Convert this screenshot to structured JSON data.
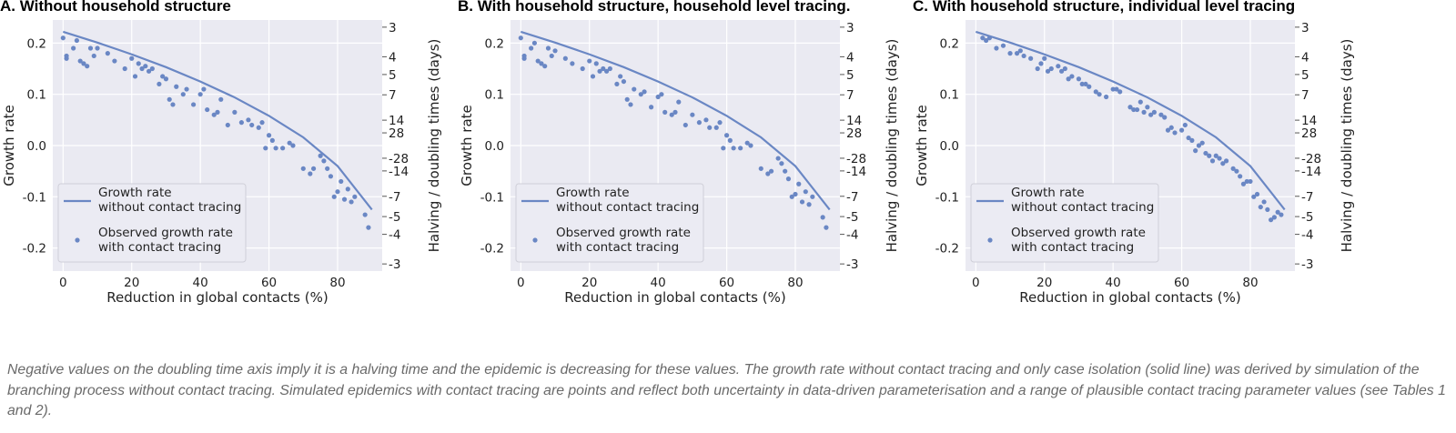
{
  "chart_data": [
    {
      "type": "scatter",
      "title": "A. Without household structure",
      "xlabel": "Reduction in global contacts (%)",
      "ylabel": "Growth rate",
      "y2label": "Halving / doubling times (days)",
      "xlim": [
        -3,
        93
      ],
      "ylim": [
        -0.245,
        0.245
      ],
      "xticks": [
        "0",
        "20",
        "40",
        "60",
        "80"
      ],
      "yticks": [
        "0.2",
        "0.1",
        "0.0",
        "-0.1",
        "-0.2"
      ],
      "y2ticks": [
        "-3",
        "-4",
        "-5",
        "-7",
        "-14",
        "-28",
        "28",
        "14",
        "7",
        "5",
        "4",
        "3"
      ],
      "grid": true,
      "legend": {
        "placement": "lower-left",
        "entries": [
          "Growth rate\nwithout contact tracing",
          "Observed growth rate\nwith contact tracing"
        ]
      },
      "series": [
        {
          "name": "Growth rate\nwithout contact tracing",
          "type": "line",
          "x": [
            0,
            10,
            20,
            30,
            40,
            50,
            60,
            70,
            80,
            90
          ],
          "y": [
            0.222,
            0.201,
            0.178,
            0.153,
            0.125,
            0.094,
            0.058,
            0.016,
            -0.04,
            -0.125
          ]
        },
        {
          "name": "Observed growth rate\nwith contact tracing",
          "type": "scatter",
          "points": [
            [
              0,
              0.21
            ],
            [
              1,
              0.175
            ],
            [
              1,
              0.17
            ],
            [
              3,
              0.19
            ],
            [
              4,
              0.205
            ],
            [
              5,
              0.165
            ],
            [
              6,
              0.16
            ],
            [
              7,
              0.155
            ],
            [
              8,
              0.19
            ],
            [
              9,
              0.175
            ],
            [
              10,
              0.19
            ],
            [
              13,
              0.18
            ],
            [
              15,
              0.165
            ],
            [
              18,
              0.15
            ],
            [
              20,
              0.17
            ],
            [
              21,
              0.135
            ],
            [
              22,
              0.16
            ],
            [
              23,
              0.15
            ],
            [
              24,
              0.155
            ],
            [
              25,
              0.145
            ],
            [
              26,
              0.15
            ],
            [
              28,
              0.12
            ],
            [
              29,
              0.135
            ],
            [
              30,
              0.13
            ],
            [
              31,
              0.09
            ],
            [
              32,
              0.08
            ],
            [
              33,
              0.115
            ],
            [
              35,
              0.1
            ],
            [
              36,
              0.11
            ],
            [
              38,
              0.08
            ],
            [
              40,
              0.1
            ],
            [
              41,
              0.11
            ],
            [
              42,
              0.07
            ],
            [
              44,
              0.06
            ],
            [
              45,
              0.065
            ],
            [
              46,
              0.09
            ],
            [
              48,
              0.04
            ],
            [
              50,
              0.065
            ],
            [
              52,
              0.045
            ],
            [
              54,
              0.05
            ],
            [
              55,
              0.04
            ],
            [
              57,
              0.035
            ],
            [
              58,
              0.045
            ],
            [
              59,
              -0.005
            ],
            [
              60,
              0.02
            ],
            [
              61,
              0.01
            ],
            [
              62,
              -0.005
            ],
            [
              64,
              -0.005
            ],
            [
              66,
              0.005
            ],
            [
              67,
              0.0
            ],
            [
              70,
              -0.045
            ],
            [
              72,
              -0.055
            ],
            [
              73,
              -0.045
            ],
            [
              75,
              -0.02
            ],
            [
              76,
              -0.03
            ],
            [
              77,
              -0.045
            ],
            [
              78,
              -0.06
            ],
            [
              79,
              -0.1
            ],
            [
              80,
              -0.09
            ],
            [
              81,
              -0.07
            ],
            [
              82,
              -0.105
            ],
            [
              83,
              -0.085
            ],
            [
              84,
              -0.11
            ],
            [
              85,
              -0.1
            ],
            [
              88,
              -0.135
            ],
            [
              89,
              -0.16
            ]
          ]
        }
      ]
    },
    {
      "type": "scatter",
      "title": "B. With household structure, household level tracing.",
      "xlabel": "Reduction in global contacts (%)",
      "ylabel": "Growth rate",
      "y2label": "Halving / doubling times (days)",
      "xlim": [
        -3,
        93
      ],
      "ylim": [
        -0.245,
        0.245
      ],
      "xticks": [
        "0",
        "20",
        "40",
        "60",
        "80"
      ],
      "yticks": [
        "0.2",
        "0.1",
        "0.0",
        "-0.1",
        "-0.2"
      ],
      "y2ticks": [
        "-3",
        "-4",
        "-5",
        "-7",
        "-14",
        "-28",
        "28",
        "14",
        "7",
        "5",
        "4",
        "3"
      ],
      "grid": true,
      "legend": {
        "placement": "lower-left",
        "entries": [
          "Growth rate\nwithout contact tracing",
          "Observed growth rate\nwith contact tracing"
        ]
      },
      "series": [
        {
          "name": "Growth rate\nwithout contact tracing",
          "type": "line",
          "x": [
            0,
            10,
            20,
            30,
            40,
            50,
            60,
            70,
            80,
            90
          ],
          "y": [
            0.222,
            0.201,
            0.178,
            0.153,
            0.125,
            0.094,
            0.058,
            0.016,
            -0.04,
            -0.125
          ]
        },
        {
          "name": "Observed growth rate\nwith contact tracing",
          "type": "scatter",
          "points": [
            [
              0,
              0.21
            ],
            [
              1,
              0.175
            ],
            [
              1,
              0.17
            ],
            [
              3,
              0.19
            ],
            [
              4,
              0.2
            ],
            [
              5,
              0.165
            ],
            [
              6,
              0.16
            ],
            [
              7,
              0.155
            ],
            [
              8,
              0.19
            ],
            [
              9,
              0.175
            ],
            [
              10,
              0.185
            ],
            [
              13,
              0.17
            ],
            [
              15,
              0.16
            ],
            [
              18,
              0.15
            ],
            [
              20,
              0.165
            ],
            [
              21,
              0.135
            ],
            [
              22,
              0.16
            ],
            [
              23,
              0.145
            ],
            [
              24,
              0.15
            ],
            [
              25,
              0.145
            ],
            [
              26,
              0.15
            ],
            [
              28,
              0.12
            ],
            [
              29,
              0.135
            ],
            [
              30,
              0.125
            ],
            [
              31,
              0.09
            ],
            [
              32,
              0.08
            ],
            [
              33,
              0.11
            ],
            [
              35,
              0.1
            ],
            [
              36,
              0.105
            ],
            [
              38,
              0.075
            ],
            [
              40,
              0.095
            ],
            [
              41,
              0.1
            ],
            [
              42,
              0.065
            ],
            [
              44,
              0.06
            ],
            [
              45,
              0.065
            ],
            [
              46,
              0.085
            ],
            [
              48,
              0.04
            ],
            [
              50,
              0.06
            ],
            [
              52,
              0.045
            ],
            [
              54,
              0.05
            ],
            [
              55,
              0.035
            ],
            [
              57,
              0.035
            ],
            [
              58,
              0.045
            ],
            [
              59,
              -0.005
            ],
            [
              60,
              0.02
            ],
            [
              61,
              0.01
            ],
            [
              62,
              -0.005
            ],
            [
              64,
              -0.005
            ],
            [
              66,
              0.005
            ],
            [
              67,
              0.0
            ],
            [
              70,
              -0.045
            ],
            [
              72,
              -0.055
            ],
            [
              73,
              -0.05
            ],
            [
              75,
              -0.025
            ],
            [
              76,
              -0.035
            ],
            [
              77,
              -0.05
            ],
            [
              78,
              -0.065
            ],
            [
              79,
              -0.1
            ],
            [
              80,
              -0.095
            ],
            [
              81,
              -0.075
            ],
            [
              82,
              -0.11
            ],
            [
              83,
              -0.09
            ],
            [
              84,
              -0.115
            ],
            [
              85,
              -0.1
            ],
            [
              88,
              -0.14
            ],
            [
              89,
              -0.16
            ]
          ]
        }
      ]
    },
    {
      "type": "scatter",
      "title": "C. With household structure, individual level tracing",
      "xlabel": "Reduction in global contacts (%)",
      "ylabel": "Growth rate",
      "y2label": "Halving / doubling times (days)",
      "xlim": [
        -3,
        93
      ],
      "ylim": [
        -0.245,
        0.245
      ],
      "xticks": [
        "0",
        "20",
        "40",
        "60",
        "80"
      ],
      "yticks": [
        "0.2",
        "0.1",
        "0.0",
        "-0.1",
        "-0.2"
      ],
      "y2ticks": [
        "-3",
        "-4",
        "-5",
        "-7",
        "-14",
        "-28",
        "28",
        "14",
        "7",
        "5",
        "4",
        "3"
      ],
      "grid": true,
      "legend": {
        "placement": "lower-left",
        "entries": [
          "Growth rate\nwithout contact tracing",
          "Observed growth rate\nwith contact tracing"
        ]
      },
      "series": [
        {
          "name": "Growth rate\nwithout contact tracing",
          "type": "line",
          "x": [
            0,
            10,
            20,
            30,
            40,
            50,
            60,
            70,
            80,
            90
          ],
          "y": [
            0.222,
            0.201,
            0.178,
            0.153,
            0.125,
            0.094,
            0.058,
            0.016,
            -0.04,
            -0.125
          ]
        },
        {
          "name": "Observed growth rate\nwith contact tracing",
          "type": "scatter",
          "points": [
            [
              2,
              0.21
            ],
            [
              3,
              0.205
            ],
            [
              4,
              0.21
            ],
            [
              6,
              0.19
            ],
            [
              8,
              0.195
            ],
            [
              10,
              0.18
            ],
            [
              12,
              0.18
            ],
            [
              13,
              0.185
            ],
            [
              14,
              0.175
            ],
            [
              16,
              0.17
            ],
            [
              18,
              0.15
            ],
            [
              19,
              0.16
            ],
            [
              20,
              0.17
            ],
            [
              21,
              0.145
            ],
            [
              22,
              0.15
            ],
            [
              24,
              0.155
            ],
            [
              25,
              0.145
            ],
            [
              26,
              0.15
            ],
            [
              27,
              0.13
            ],
            [
              28,
              0.135
            ],
            [
              30,
              0.13
            ],
            [
              31,
              0.12
            ],
            [
              32,
              0.12
            ],
            [
              33,
              0.115
            ],
            [
              35,
              0.105
            ],
            [
              36,
              0.1
            ],
            [
              38,
              0.095
            ],
            [
              40,
              0.11
            ],
            [
              41,
              0.11
            ],
            [
              42,
              0.105
            ],
            [
              45,
              0.075
            ],
            [
              46,
              0.07
            ],
            [
              47,
              0.07
            ],
            [
              48,
              0.085
            ],
            [
              49,
              0.065
            ],
            [
              50,
              0.075
            ],
            [
              51,
              0.06
            ],
            [
              52,
              0.065
            ],
            [
              54,
              0.06
            ],
            [
              55,
              0.055
            ],
            [
              56,
              0.03
            ],
            [
              57,
              0.035
            ],
            [
              58,
              0.025
            ],
            [
              60,
              0.03
            ],
            [
              61,
              0.04
            ],
            [
              62,
              0.015
            ],
            [
              63,
              0.01
            ],
            [
              64,
              -0.01
            ],
            [
              65,
              0.0
            ],
            [
              66,
              0.005
            ],
            [
              67,
              -0.015
            ],
            [
              68,
              -0.02
            ],
            [
              69,
              -0.03
            ],
            [
              70,
              -0.02
            ],
            [
              71,
              -0.025
            ],
            [
              72,
              -0.035
            ],
            [
              73,
              -0.03
            ],
            [
              75,
              -0.045
            ],
            [
              76,
              -0.05
            ],
            [
              77,
              -0.06
            ],
            [
              78,
              -0.075
            ],
            [
              79,
              -0.07
            ],
            [
              80,
              -0.07
            ],
            [
              81,
              -0.1
            ],
            [
              82,
              -0.095
            ],
            [
              83,
              -0.12
            ],
            [
              84,
              -0.11
            ],
            [
              85,
              -0.125
            ],
            [
              86,
              -0.145
            ],
            [
              87,
              -0.14
            ],
            [
              88,
              -0.13
            ],
            [
              89,
              -0.135
            ]
          ]
        }
      ]
    }
  ],
  "caption": "Negative values on the doubling time axis imply it is a halving time and the epidemic is decreasing for these values. The growth rate without contact tracing and only case isolation (solid line) was derived by simulation of the branching process without contact tracing. Simulated epidemics with contact tracing are points and reflect both uncertainty in data-driven parameterisation and a range of plausible contact tracing parameter values (see Tables 1 and 2).",
  "colors": {
    "plot_bg": "#eaeaf2",
    "grid": "#ffffff",
    "series": "#6a87c4",
    "legend_bg": "#ebebf3",
    "legend_border": "#cfcfd8"
  }
}
